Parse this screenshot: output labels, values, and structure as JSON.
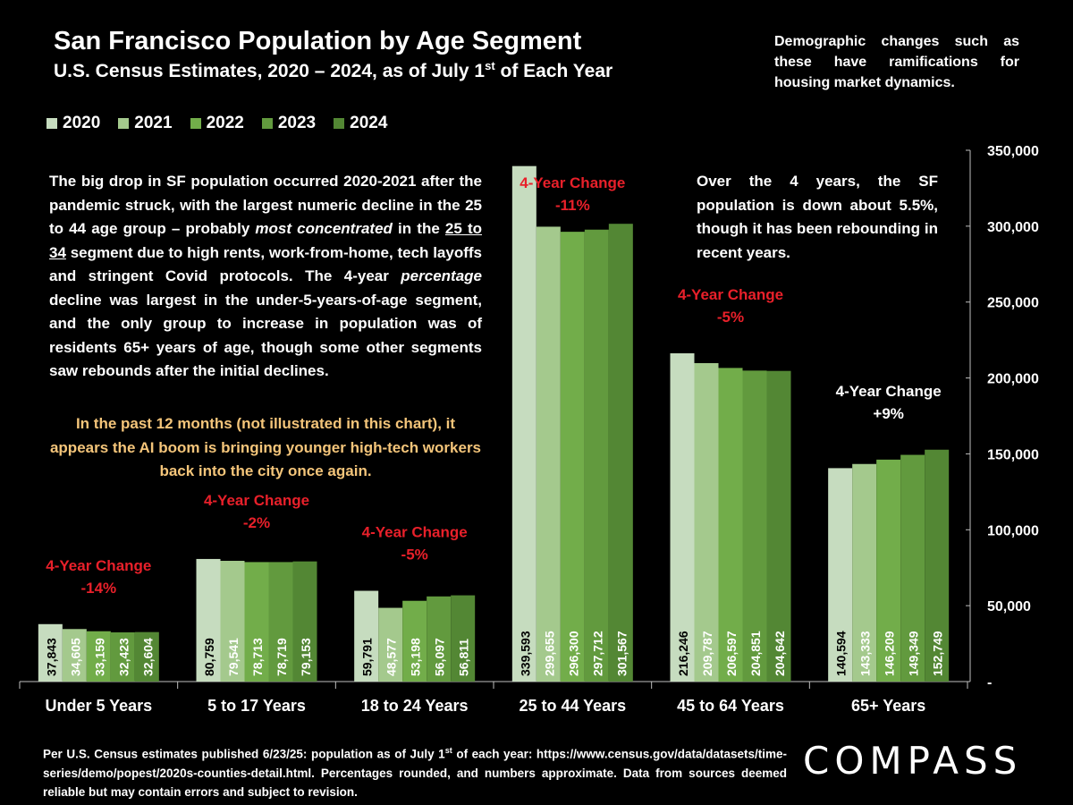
{
  "header": {
    "title": "San Francisco Population by Age Segment",
    "subtitle_main": "U.S. Census Estimates, 2020 – 2024, as of July 1",
    "subtitle_sup": "st",
    "subtitle_end": " of Each Year"
  },
  "sidenote": "Demographic changes such as these have ramifications for housing market dynamics.",
  "left_box": {
    "p1": "The big drop in SF population occurred 2020-2021 after the pandemic struck, with the largest numeric decline in the 25 to 44 age group – probably ",
    "em1": "most concentrated",
    "p2": " in the ",
    "u1": "25 to 34",
    "p3": " segment due to high rents, work-from-home, tech layoffs and stringent Covid protocols. The 4-year ",
    "em2": "percentage",
    "p4": " decline was largest in the under-5-years-of-age segment, and the only group to increase in population was of residents 65+ years of age, though some other segments saw rebounds after the initial declines."
  },
  "ai_note": "In the past 12 months (not illustrated in this chart), it appears the AI boom is bringing younger high-tech workers back into the city once again.",
  "right_box": "Over the 4 years, the SF population is down about 5.5%, though it has been rebounding in recent years.",
  "footer": {
    "part1": "Per U.S. Census estimates published 6/23/25: population as of July 1",
    "sup": "st",
    "part2": " of each year: https://www.census.gov/data/datasets/time-series/demo/popest/2020s-counties-detail.html. Percentages rounded, and numbers approximate. Data from sources deemed reliable but may contain errors and subject to revision."
  },
  "logo": "COMPASS",
  "chart_data": {
    "type": "bar",
    "categories": [
      "Under 5 Years",
      "5 to 17 Years",
      "18 to 24 Years",
      "25 to 44 Years",
      "45 to 64 Years",
      "65+ Years"
    ],
    "series": [
      {
        "name": "2020",
        "color": "#c6dcbf",
        "values": [
          37843,
          80759,
          59791,
          339593,
          216246,
          140594
        ]
      },
      {
        "name": "2021",
        "color": "#a4c98d",
        "values": [
          34605,
          79541,
          48577,
          299655,
          209787,
          143333
        ]
      },
      {
        "name": "2022",
        "color": "#72ad4a",
        "values": [
          33159,
          78713,
          53198,
          296300,
          206597,
          146209
        ]
      },
      {
        "name": "2023",
        "color": "#629a3e",
        "values": [
          32423,
          78719,
          56097,
          297712,
          204851,
          149349
        ]
      },
      {
        "name": "2024",
        "color": "#538734",
        "values": [
          32604,
          79153,
          56811,
          301567,
          204642,
          152749
        ]
      }
    ],
    "data_labels": [
      [
        "37,843",
        "34,605",
        "33,159",
        "32,423",
        "32,604"
      ],
      [
        "80,759",
        "79,541",
        "78,713",
        "78,719",
        "79,153"
      ],
      [
        "59,791",
        "48,577",
        "53,198",
        "56,097",
        "56,811"
      ],
      [
        "339,593",
        "299,655",
        "296,300",
        "297,712",
        "301,567"
      ],
      [
        "216,246",
        "209,787",
        "206,597",
        "204,851",
        "204,642"
      ],
      [
        "140,594",
        "143,333",
        "146,209",
        "149,349",
        "152,749"
      ]
    ],
    "annotations": [
      {
        "line1": "4-Year Change",
        "line2": "-14%",
        "color": "#e8202a"
      },
      {
        "line1": "4-Year Change",
        "line2": "-2%",
        "color": "#e8202a"
      },
      {
        "line1": "4-Year Change",
        "line2": "-5%",
        "color": "#e8202a"
      },
      {
        "line1": "4-Year Change",
        "line2": "-11%",
        "color": "#e8202a"
      },
      {
        "line1": "4-Year Change",
        "line2": "-5%",
        "color": "#e8202a"
      },
      {
        "line1": "4-Year Change",
        "line2": "+9%",
        "color": "#ffffff"
      }
    ],
    "ylim": [
      0,
      350000
    ],
    "yticks": [
      "-",
      "50,000",
      "100,000",
      "150,000",
      "200,000",
      "250,000",
      "300,000",
      "350,000"
    ],
    "y_axis_side": "right",
    "legend_position": "top-left",
    "grid": false
  }
}
